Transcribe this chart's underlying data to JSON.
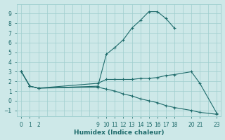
{
  "xlabel": "Humidex (Indice chaleur)",
  "background_color": "#cde8e8",
  "grid_color": "#9ecece",
  "line_color": "#1e6b6b",
  "xlim": [
    -0.5,
    23.5
  ],
  "ylim": [
    -1.6,
    10.0
  ],
  "xticks": [
    0,
    1,
    2,
    9,
    10,
    11,
    12,
    13,
    14,
    15,
    16,
    17,
    18,
    20,
    21,
    23
  ],
  "yticks": [
    -1,
    0,
    1,
    2,
    3,
    4,
    5,
    6,
    7,
    8,
    9
  ],
  "line1_x": [
    0,
    1,
    2,
    9,
    10,
    11,
    12,
    13,
    14,
    15,
    16,
    17,
    18
  ],
  "line1_y": [
    3.0,
    1.5,
    1.3,
    1.5,
    4.8,
    5.5,
    6.3,
    7.5,
    8.3,
    9.2,
    9.2,
    8.5,
    7.5
  ],
  "line2_x": [
    0,
    1,
    2,
    9,
    10,
    11,
    12,
    13,
    14,
    15,
    16,
    17,
    18,
    20,
    21,
    23
  ],
  "line2_y": [
    3.0,
    1.5,
    1.3,
    1.8,
    2.2,
    2.2,
    2.2,
    2.2,
    2.3,
    2.3,
    2.4,
    2.6,
    2.7,
    3.0,
    1.8,
    -1.3
  ],
  "line3_x": [
    0,
    1,
    2,
    9,
    10,
    11,
    12,
    13,
    14,
    15,
    16,
    17,
    18,
    20,
    21,
    23
  ],
  "line3_y": [
    3.0,
    1.5,
    1.3,
    1.4,
    1.2,
    1.0,
    0.7,
    0.5,
    0.2,
    0.0,
    -0.2,
    -0.5,
    -0.7,
    -1.0,
    -1.2,
    -1.4
  ]
}
